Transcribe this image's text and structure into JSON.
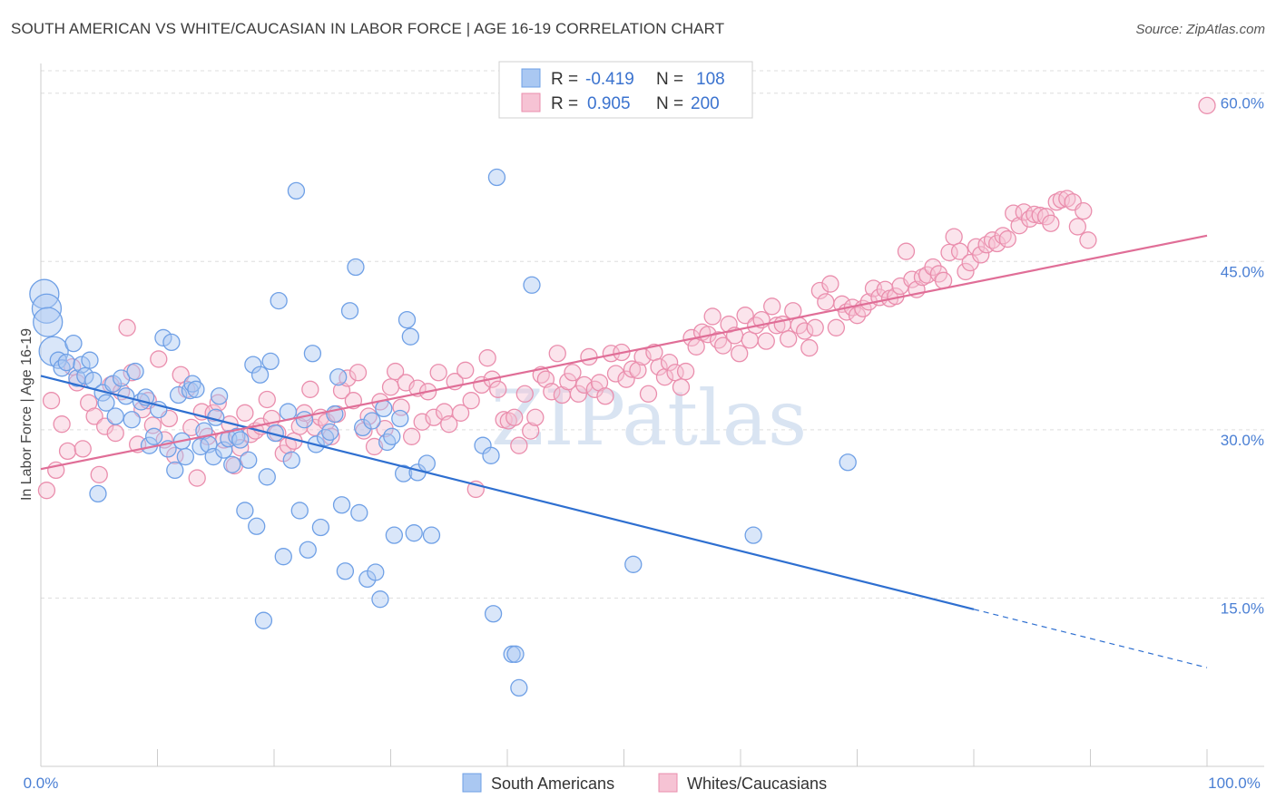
{
  "header": {
    "title": "SOUTH AMERICAN VS WHITE/CAUCASIAN IN LABOR FORCE | AGE 16-19 CORRELATION CHART",
    "source": "Source: ZipAtlas.com"
  },
  "watermark": "ZIPatlas",
  "colors": {
    "blue": "#6fa0e6",
    "blue_fill": "#aac8f2",
    "blue_line": "#2e6fd0",
    "pink": "#ea8ead",
    "pink_fill": "#f6c3d4",
    "pink_line": "#e06e97",
    "tick": "#4a7fd4",
    "grid": "#dddddd"
  },
  "legend": {
    "rows": [
      {
        "r_label": "R =",
        "r_value": "-0.419",
        "n_label": "N =",
        "n_value": "108"
      },
      {
        "r_label": "R =",
        "r_value": "0.905",
        "n_label": "N =",
        "n_value": "200"
      }
    ]
  },
  "chart_data": {
    "type": "scatter",
    "ylabel": "In Labor Force | Age 16-19",
    "xlabel": "",
    "xlim": [
      0,
      100
    ],
    "ylim": [
      0,
      62
    ],
    "x_tick_labels": [
      "0.0%",
      "100.0%"
    ],
    "y_ticks": [
      15,
      30,
      45,
      60
    ],
    "y_tick_labels": [
      "15.0%",
      "30.0%",
      "45.0%",
      "60.0%"
    ],
    "grid": true,
    "legend_position": "bottom",
    "series": [
      {
        "name": "South Americans",
        "r": -0.419,
        "n": 108,
        "trend": {
          "x0": 0,
          "y0": 34.8,
          "x1": 80,
          "y1": 14.0,
          "dash_to_x": 100,
          "dash_to_y": 8.8
        },
        "points": [
          [
            0.3,
            42.1
          ],
          [
            0.5,
            40.8
          ],
          [
            0.6,
            39.6
          ],
          [
            1.1,
            37.0
          ],
          [
            1.5,
            36.2
          ],
          [
            1.8,
            35.5
          ],
          [
            2.2,
            36.0
          ],
          [
            2.8,
            37.7
          ],
          [
            3.1,
            34.6
          ],
          [
            3.5,
            35.8
          ],
          [
            3.8,
            34.8
          ],
          [
            4.2,
            36.2
          ],
          [
            4.5,
            34.4
          ],
          [
            4.9,
            24.3
          ],
          [
            5.3,
            33.3
          ],
          [
            5.6,
            32.4
          ],
          [
            6.2,
            34.1
          ],
          [
            6.4,
            31.2
          ],
          [
            6.9,
            34.6
          ],
          [
            7.3,
            33.0
          ],
          [
            7.8,
            30.9
          ],
          [
            8.1,
            35.2
          ],
          [
            8.6,
            32.5
          ],
          [
            9.0,
            32.9
          ],
          [
            9.3,
            28.6
          ],
          [
            9.7,
            29.4
          ],
          [
            10.1,
            31.8
          ],
          [
            10.5,
            38.2
          ],
          [
            10.9,
            28.3
          ],
          [
            11.2,
            37.8
          ],
          [
            11.5,
            26.4
          ],
          [
            11.8,
            33.1
          ],
          [
            12.1,
            29.0
          ],
          [
            12.4,
            27.6
          ],
          [
            12.8,
            33.5
          ],
          [
            13.0,
            34.1
          ],
          [
            13.3,
            33.6
          ],
          [
            13.7,
            28.5
          ],
          [
            14.0,
            29.9
          ],
          [
            14.4,
            28.7
          ],
          [
            14.8,
            27.6
          ],
          [
            15.0,
            31.1
          ],
          [
            15.3,
            33.0
          ],
          [
            15.7,
            28.2
          ],
          [
            16.1,
            29.2
          ],
          [
            16.4,
            26.9
          ],
          [
            16.8,
            29.4
          ],
          [
            17.1,
            29.1
          ],
          [
            17.5,
            22.8
          ],
          [
            17.8,
            27.3
          ],
          [
            18.2,
            35.8
          ],
          [
            18.5,
            21.4
          ],
          [
            18.8,
            34.9
          ],
          [
            19.1,
            13.0
          ],
          [
            19.4,
            25.8
          ],
          [
            19.7,
            36.1
          ],
          [
            20.1,
            29.7
          ],
          [
            20.4,
            41.5
          ],
          [
            20.8,
            18.7
          ],
          [
            21.2,
            31.6
          ],
          [
            21.5,
            27.3
          ],
          [
            21.9,
            51.3
          ],
          [
            22.2,
            22.8
          ],
          [
            22.6,
            30.9
          ],
          [
            22.9,
            19.3
          ],
          [
            23.3,
            36.8
          ],
          [
            23.6,
            28.7
          ],
          [
            24.0,
            21.3
          ],
          [
            24.4,
            29.3
          ],
          [
            24.8,
            29.8
          ],
          [
            25.2,
            31.4
          ],
          [
            25.5,
            34.7
          ],
          [
            25.8,
            23.3
          ],
          [
            26.1,
            17.4
          ],
          [
            26.5,
            40.6
          ],
          [
            27.0,
            44.5
          ],
          [
            27.3,
            22.6
          ],
          [
            27.6,
            30.2
          ],
          [
            28.0,
            16.7
          ],
          [
            28.4,
            30.8
          ],
          [
            28.7,
            17.3
          ],
          [
            29.1,
            14.9
          ],
          [
            29.4,
            31.9
          ],
          [
            29.7,
            28.9
          ],
          [
            30.1,
            29.4
          ],
          [
            30.3,
            20.6
          ],
          [
            30.8,
            31.0
          ],
          [
            31.1,
            26.1
          ],
          [
            31.4,
            39.8
          ],
          [
            31.7,
            38.3
          ],
          [
            32.0,
            20.8
          ],
          [
            32.3,
            26.2
          ],
          [
            33.1,
            27.0
          ],
          [
            33.5,
            20.6
          ],
          [
            37.9,
            28.6
          ],
          [
            38.6,
            27.7
          ],
          [
            38.8,
            13.6
          ],
          [
            39.1,
            52.5
          ],
          [
            40.4,
            10.0
          ],
          [
            40.7,
            10.0
          ],
          [
            41.0,
            7.0
          ],
          [
            42.1,
            42.9
          ],
          [
            50.8,
            18.0
          ],
          [
            61.1,
            20.6
          ],
          [
            69.2,
            27.1
          ]
        ]
      },
      {
        "name": "Whites/Caucasians",
        "r": 0.905,
        "n": 200,
        "trend": {
          "x0": 0,
          "y0": 26.5,
          "x1": 100,
          "y1": 47.3
        },
        "points": [
          [
            0.5,
            24.6
          ],
          [
            0.9,
            32.6
          ],
          [
            1.3,
            26.4
          ],
          [
            1.8,
            30.5
          ],
          [
            2.3,
            28.1
          ],
          [
            2.7,
            35.6
          ],
          [
            3.1,
            34.2
          ],
          [
            3.6,
            28.3
          ],
          [
            4.1,
            32.4
          ],
          [
            4.6,
            31.2
          ],
          [
            5.0,
            26.0
          ],
          [
            5.5,
            30.3
          ],
          [
            6.0,
            34.0
          ],
          [
            6.4,
            29.7
          ],
          [
            6.9,
            33.4
          ],
          [
            7.4,
            39.1
          ],
          [
            7.8,
            35.1
          ],
          [
            8.3,
            28.7
          ],
          [
            8.7,
            31.8
          ],
          [
            9.2,
            32.6
          ],
          [
            9.6,
            30.4
          ],
          [
            10.1,
            36.3
          ],
          [
            10.6,
            29.1
          ],
          [
            11.0,
            31.0
          ],
          [
            11.5,
            27.7
          ],
          [
            12.0,
            34.9
          ],
          [
            12.5,
            33.6
          ],
          [
            12.9,
            30.2
          ],
          [
            13.4,
            25.7
          ],
          [
            13.8,
            31.6
          ],
          [
            14.3,
            29.4
          ],
          [
            14.8,
            31.5
          ],
          [
            15.2,
            32.4
          ],
          [
            15.7,
            29.1
          ],
          [
            16.2,
            30.5
          ],
          [
            16.6,
            26.8
          ],
          [
            17.1,
            28.4
          ],
          [
            17.5,
            31.5
          ],
          [
            18.0,
            29.6
          ],
          [
            18.4,
            29.9
          ],
          [
            18.9,
            30.3
          ],
          [
            19.4,
            32.7
          ],
          [
            19.8,
            31.0
          ],
          [
            20.3,
            29.7
          ],
          [
            20.8,
            27.9
          ],
          [
            21.2,
            28.6
          ],
          [
            21.7,
            29.0
          ],
          [
            22.2,
            30.3
          ],
          [
            22.6,
            31.5
          ],
          [
            23.1,
            33.6
          ],
          [
            23.5,
            30.2
          ],
          [
            24.0,
            31.1
          ],
          [
            24.5,
            30.7
          ],
          [
            24.9,
            29.4
          ],
          [
            25.4,
            31.4
          ],
          [
            25.8,
            33.5
          ],
          [
            26.3,
            34.6
          ],
          [
            26.8,
            32.6
          ],
          [
            27.2,
            35.1
          ],
          [
            27.7,
            29.9
          ],
          [
            28.1,
            31.2
          ],
          [
            28.6,
            28.5
          ],
          [
            29.1,
            32.5
          ],
          [
            29.5,
            30.1
          ],
          [
            30.0,
            33.8
          ],
          [
            30.4,
            35.2
          ],
          [
            30.9,
            32.0
          ],
          [
            31.3,
            34.2
          ],
          [
            31.8,
            29.4
          ],
          [
            32.3,
            33.7
          ],
          [
            32.7,
            30.7
          ],
          [
            33.2,
            33.4
          ],
          [
            33.7,
            31.1
          ],
          [
            34.1,
            35.1
          ],
          [
            34.6,
            31.6
          ],
          [
            35.0,
            30.5
          ],
          [
            35.5,
            34.3
          ],
          [
            36.0,
            31.5
          ],
          [
            36.4,
            35.3
          ],
          [
            36.9,
            32.6
          ],
          [
            37.3,
            24.7
          ],
          [
            37.8,
            34.0
          ],
          [
            38.3,
            36.4
          ],
          [
            38.7,
            34.5
          ],
          [
            39.2,
            33.6
          ],
          [
            39.7,
            30.9
          ],
          [
            40.1,
            30.8
          ],
          [
            40.6,
            31.1
          ],
          [
            41.0,
            28.6
          ],
          [
            41.5,
            33.2
          ],
          [
            42.0,
            29.9
          ],
          [
            42.4,
            31.1
          ],
          [
            42.9,
            34.9
          ],
          [
            43.3,
            34.5
          ],
          [
            43.8,
            33.4
          ],
          [
            44.3,
            36.8
          ],
          [
            44.7,
            33.1
          ],
          [
            45.2,
            34.3
          ],
          [
            45.6,
            35.1
          ],
          [
            46.1,
            33.2
          ],
          [
            46.6,
            34.0
          ],
          [
            47.0,
            36.5
          ],
          [
            47.5,
            33.6
          ],
          [
            47.9,
            34.2
          ],
          [
            48.4,
            33.0
          ],
          [
            48.9,
            36.8
          ],
          [
            49.3,
            35.0
          ],
          [
            49.8,
            36.9
          ],
          [
            50.2,
            34.5
          ],
          [
            50.7,
            35.4
          ],
          [
            51.2,
            35.3
          ],
          [
            51.6,
            36.5
          ],
          [
            52.1,
            33.2
          ],
          [
            52.6,
            36.9
          ],
          [
            53.0,
            35.6
          ],
          [
            53.5,
            34.7
          ],
          [
            53.9,
            36.0
          ],
          [
            54.4,
            35.1
          ],
          [
            54.9,
            33.8
          ],
          [
            55.3,
            35.2
          ],
          [
            55.8,
            38.2
          ],
          [
            56.2,
            37.4
          ],
          [
            56.7,
            38.7
          ],
          [
            57.2,
            38.5
          ],
          [
            57.6,
            40.1
          ],
          [
            58.1,
            38.0
          ],
          [
            58.5,
            37.5
          ],
          [
            59.0,
            39.4
          ],
          [
            59.5,
            38.4
          ],
          [
            59.9,
            36.8
          ],
          [
            60.4,
            40.2
          ],
          [
            60.8,
            38.0
          ],
          [
            61.3,
            39.3
          ],
          [
            61.8,
            39.8
          ],
          [
            62.2,
            37.9
          ],
          [
            62.7,
            41.0
          ],
          [
            63.1,
            39.3
          ],
          [
            63.6,
            39.4
          ],
          [
            64.1,
            38.1
          ],
          [
            64.5,
            40.6
          ],
          [
            65.0,
            39.3
          ],
          [
            65.5,
            38.8
          ],
          [
            65.9,
            37.3
          ],
          [
            66.4,
            39.1
          ],
          [
            66.8,
            42.4
          ],
          [
            67.3,
            41.4
          ],
          [
            67.7,
            43.0
          ],
          [
            68.2,
            39.1
          ],
          [
            68.7,
            41.2
          ],
          [
            69.1,
            40.5
          ],
          [
            69.6,
            40.9
          ],
          [
            70.0,
            40.2
          ],
          [
            70.5,
            40.8
          ],
          [
            71.0,
            41.4
          ],
          [
            71.4,
            42.6
          ],
          [
            71.9,
            41.8
          ],
          [
            72.4,
            42.5
          ],
          [
            72.8,
            41.7
          ],
          [
            73.3,
            41.9
          ],
          [
            73.7,
            42.8
          ],
          [
            74.2,
            45.9
          ],
          [
            74.7,
            43.4
          ],
          [
            75.1,
            42.5
          ],
          [
            75.6,
            43.6
          ],
          [
            76.0,
            43.8
          ],
          [
            76.5,
            44.5
          ],
          [
            77.0,
            43.9
          ],
          [
            77.4,
            43.3
          ],
          [
            77.9,
            45.8
          ],
          [
            78.3,
            47.2
          ],
          [
            78.8,
            45.9
          ],
          [
            79.3,
            44.1
          ],
          [
            79.7,
            44.9
          ],
          [
            80.2,
            46.3
          ],
          [
            80.6,
            45.6
          ],
          [
            81.1,
            46.5
          ],
          [
            81.6,
            46.9
          ],
          [
            82.0,
            46.6
          ],
          [
            82.5,
            47.3
          ],
          [
            82.9,
            47.0
          ],
          [
            83.4,
            49.3
          ],
          [
            83.9,
            48.2
          ],
          [
            84.3,
            49.4
          ],
          [
            84.8,
            48.8
          ],
          [
            85.2,
            49.2
          ],
          [
            85.7,
            49.1
          ],
          [
            86.2,
            49.0
          ],
          [
            86.6,
            48.4
          ],
          [
            87.1,
            50.3
          ],
          [
            87.5,
            50.5
          ],
          [
            88.0,
            50.6
          ],
          [
            88.5,
            50.3
          ],
          [
            88.9,
            48.1
          ],
          [
            89.4,
            49.5
          ],
          [
            89.8,
            46.9
          ],
          [
            100.0,
            58.9
          ]
        ]
      }
    ]
  },
  "bottom_legend": [
    {
      "label": "South Americans"
    },
    {
      "label": "Whites/Caucasians"
    }
  ]
}
